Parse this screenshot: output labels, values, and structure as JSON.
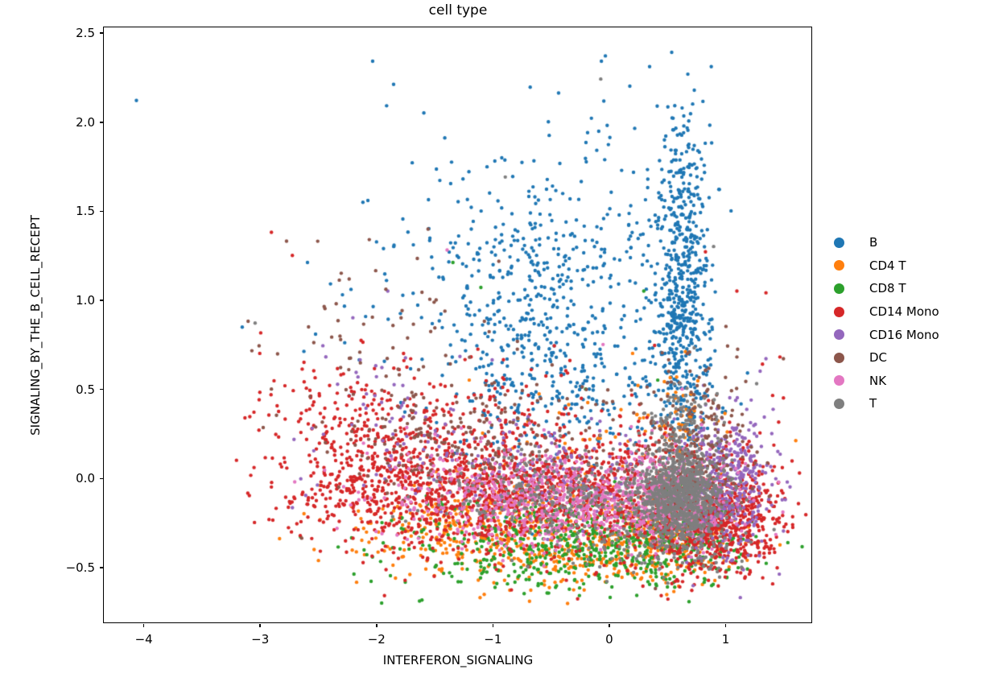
{
  "chart_data": {
    "type": "scatter",
    "title": "cell type",
    "xlabel": "INTERFERON_SIGNALING",
    "ylabel": "SIGNALING_BY_THE_B_CELL_RECEPT",
    "xlim": [
      -4.34,
      1.74
    ],
    "ylim": [
      -0.81,
      2.53
    ],
    "x_ticks": [
      -4,
      -3,
      -2,
      -1,
      0,
      1
    ],
    "y_ticks": [
      -0.5,
      0.0,
      0.5,
      1.0,
      1.5,
      2.0,
      2.5
    ],
    "grid": false,
    "legend_position": "right-outside",
    "marker_radius_px": 2.2,
    "cluster_format": "[center_x, center_y, sigma_x, sigma_y, n_points] gaussian blob",
    "series": [
      {
        "name": "B",
        "color": "#1f77b4",
        "clusters": [
          [
            -0.55,
            0.75,
            0.45,
            0.35,
            430
          ],
          [
            -0.6,
            1.3,
            0.5,
            0.2,
            130
          ],
          [
            -1.4,
            1.05,
            0.6,
            0.4,
            70
          ],
          [
            0.62,
            0.95,
            0.12,
            0.38,
            540
          ],
          [
            0.62,
            1.7,
            0.13,
            0.2,
            90
          ],
          [
            -0.2,
            1.8,
            0.5,
            0.22,
            40
          ],
          [
            0.3,
            0.45,
            0.5,
            0.15,
            70
          ]
        ],
        "points": [
          [
            -4.06,
            2.12
          ],
          [
            -2.03,
            2.34
          ],
          [
            -1.85,
            2.21
          ],
          [
            -1.91,
            2.09
          ],
          [
            -1.59,
            2.05
          ],
          [
            -1.41,
            1.91
          ],
          [
            -1.69,
            1.77
          ],
          [
            -0.98,
            1.78
          ],
          [
            -0.52,
            2.0
          ],
          [
            -0.15,
            2.02
          ],
          [
            -0.03,
            2.37
          ],
          [
            0.18,
            2.2
          ],
          [
            0.35,
            2.31
          ],
          [
            0.54,
            2.39
          ],
          [
            0.88,
            2.31
          ],
          [
            0.72,
            2.1
          ],
          [
            -2.59,
            1.21
          ],
          [
            -2.27,
            0.76
          ],
          [
            0.95,
            1.62
          ],
          [
            1.05,
            1.5
          ]
        ]
      },
      {
        "name": "CD4 T",
        "color": "#ff7f0e",
        "clusters": [
          [
            -0.7,
            -0.28,
            0.75,
            0.14,
            500
          ],
          [
            0.5,
            -0.33,
            0.3,
            0.12,
            220
          ],
          [
            -0.3,
            -0.47,
            0.6,
            0.07,
            110
          ],
          [
            0.55,
            0.3,
            0.2,
            0.15,
            60
          ],
          [
            -0.1,
            0.25,
            0.6,
            0.12,
            40
          ]
        ],
        "points": [
          [
            -2.83,
            -0.34
          ],
          [
            -2.1,
            -0.43
          ],
          [
            -2.62,
            -0.2
          ],
          [
            -1.2,
            0.55
          ],
          [
            0.25,
            0.52
          ]
        ]
      },
      {
        "name": "CD8 T",
        "color": "#2ca02c",
        "clusters": [
          [
            -0.4,
            -0.33,
            0.7,
            0.13,
            430
          ],
          [
            0.55,
            -0.35,
            0.3,
            0.12,
            200
          ],
          [
            -0.5,
            -0.5,
            0.6,
            0.07,
            90
          ]
        ],
        "points": [
          [
            -1.34,
            1.21
          ],
          [
            -1.1,
            1.07
          ],
          [
            -2.08,
            -0.43
          ],
          [
            -1.95,
            -0.25
          ],
          [
            -2.65,
            -0.33
          ],
          [
            0.42,
            0.55
          ],
          [
            -0.2,
            0.5
          ],
          [
            0.3,
            1.05
          ]
        ]
      },
      {
        "name": "CD14 Mono",
        "color": "#d62728",
        "clusters": [
          [
            -0.9,
            -0.08,
            0.72,
            0.17,
            1150
          ],
          [
            -2.1,
            0.0,
            0.45,
            0.2,
            280
          ],
          [
            0.85,
            -0.22,
            0.3,
            0.15,
            780
          ],
          [
            -1.4,
            0.38,
            0.7,
            0.18,
            170
          ],
          [
            -2.3,
            0.4,
            0.4,
            0.12,
            50
          ],
          [
            0.3,
            -0.05,
            0.4,
            0.2,
            200
          ],
          [
            1.2,
            -0.12,
            0.18,
            0.22,
            90
          ]
        ],
        "points": [
          [
            -2.9,
            1.38
          ],
          [
            -2.72,
            1.25
          ],
          [
            -3.0,
            0.7
          ],
          [
            -2.62,
            0.65
          ],
          [
            -3.05,
            0.37
          ],
          [
            -2.6,
            0.38
          ],
          [
            -2.4,
            0.52
          ],
          [
            0.83,
            1.27
          ],
          [
            1.1,
            1.05
          ],
          [
            1.35,
            1.04
          ],
          [
            1.47,
            0.68
          ],
          [
            0.45,
            -0.66
          ],
          [
            0.57,
            -0.58
          ],
          [
            -3.2,
            0.1
          ],
          [
            -2.9,
            -0.05
          ],
          [
            1.5,
            0.45
          ],
          [
            1.45,
            -0.1
          ],
          [
            1.38,
            -0.42
          ],
          [
            0.95,
            -0.52
          ],
          [
            1.32,
            0.64
          ]
        ]
      },
      {
        "name": "CD16 Mono",
        "color": "#9467bd",
        "clusters": [
          [
            1.0,
            -0.02,
            0.2,
            0.2,
            400
          ],
          [
            -0.55,
            0.05,
            0.65,
            0.15,
            170
          ],
          [
            -1.9,
            0.35,
            0.5,
            0.25,
            45
          ]
        ],
        "points": [
          [
            -2.2,
            0.9
          ],
          [
            -1.9,
            1.05
          ],
          [
            1.35,
            0.67
          ],
          [
            1.3,
            0.6
          ],
          [
            1.25,
            0.25
          ],
          [
            -2.55,
            0.28
          ],
          [
            1.2,
            -0.35
          ],
          [
            1.4,
            0.25
          ]
        ]
      },
      {
        "name": "DC",
        "color": "#8c564b",
        "clusters": [
          [
            -1.15,
            0.2,
            0.7,
            0.2,
            230
          ],
          [
            0.72,
            0.28,
            0.22,
            0.18,
            180
          ],
          [
            0.65,
            -0.05,
            0.3,
            0.12,
            80
          ],
          [
            -1.7,
            0.75,
            0.6,
            0.3,
            70
          ]
        ],
        "points": [
          [
            -2.77,
            1.33
          ],
          [
            -2.3,
            1.15
          ],
          [
            1.1,
            0.68
          ],
          [
            1.5,
            0.67
          ],
          [
            0.4,
            -0.62
          ],
          [
            -2.9,
            0.5
          ],
          [
            -3.1,
            0.88
          ]
        ]
      },
      {
        "name": "NK",
        "color": "#e377c2",
        "clusters": [
          [
            -0.4,
            -0.12,
            0.55,
            0.13,
            520
          ],
          [
            0.5,
            -0.13,
            0.28,
            0.13,
            340
          ],
          [
            -1.3,
            -0.05,
            0.45,
            0.15,
            100
          ]
        ],
        "points": [
          [
            -1.39,
            1.28
          ],
          [
            -0.05,
            0.75
          ],
          [
            0.63,
            0.5
          ],
          [
            -2.0,
            -0.3
          ]
        ]
      },
      {
        "name": "T",
        "color": "#7f7f7f",
        "clusters": [
          [
            0.62,
            -0.1,
            0.18,
            0.12,
            860
          ],
          [
            -0.35,
            -0.08,
            0.55,
            0.13,
            280
          ],
          [
            0.45,
            -0.38,
            0.35,
            0.1,
            120
          ],
          [
            0.62,
            0.25,
            0.15,
            0.15,
            120
          ]
        ],
        "points": [
          [
            -0.07,
            2.24
          ],
          [
            -0.89,
            1.69
          ],
          [
            0.9,
            1.3
          ],
          [
            1.27,
            0.53
          ],
          [
            -3.04,
            0.87
          ]
        ]
      }
    ]
  },
  "legend": {
    "items": [
      {
        "label": "B",
        "color": "#1f77b4"
      },
      {
        "label": "CD4 T",
        "color": "#ff7f0e"
      },
      {
        "label": "CD8 T",
        "color": "#2ca02c"
      },
      {
        "label": "CD14 Mono",
        "color": "#d62728"
      },
      {
        "label": "CD16 Mono",
        "color": "#9467bd"
      },
      {
        "label": "DC",
        "color": "#8c564b"
      },
      {
        "label": "NK",
        "color": "#e377c2"
      },
      {
        "label": "T",
        "color": "#7f7f7f"
      }
    ]
  },
  "render": {
    "seed": 42
  }
}
